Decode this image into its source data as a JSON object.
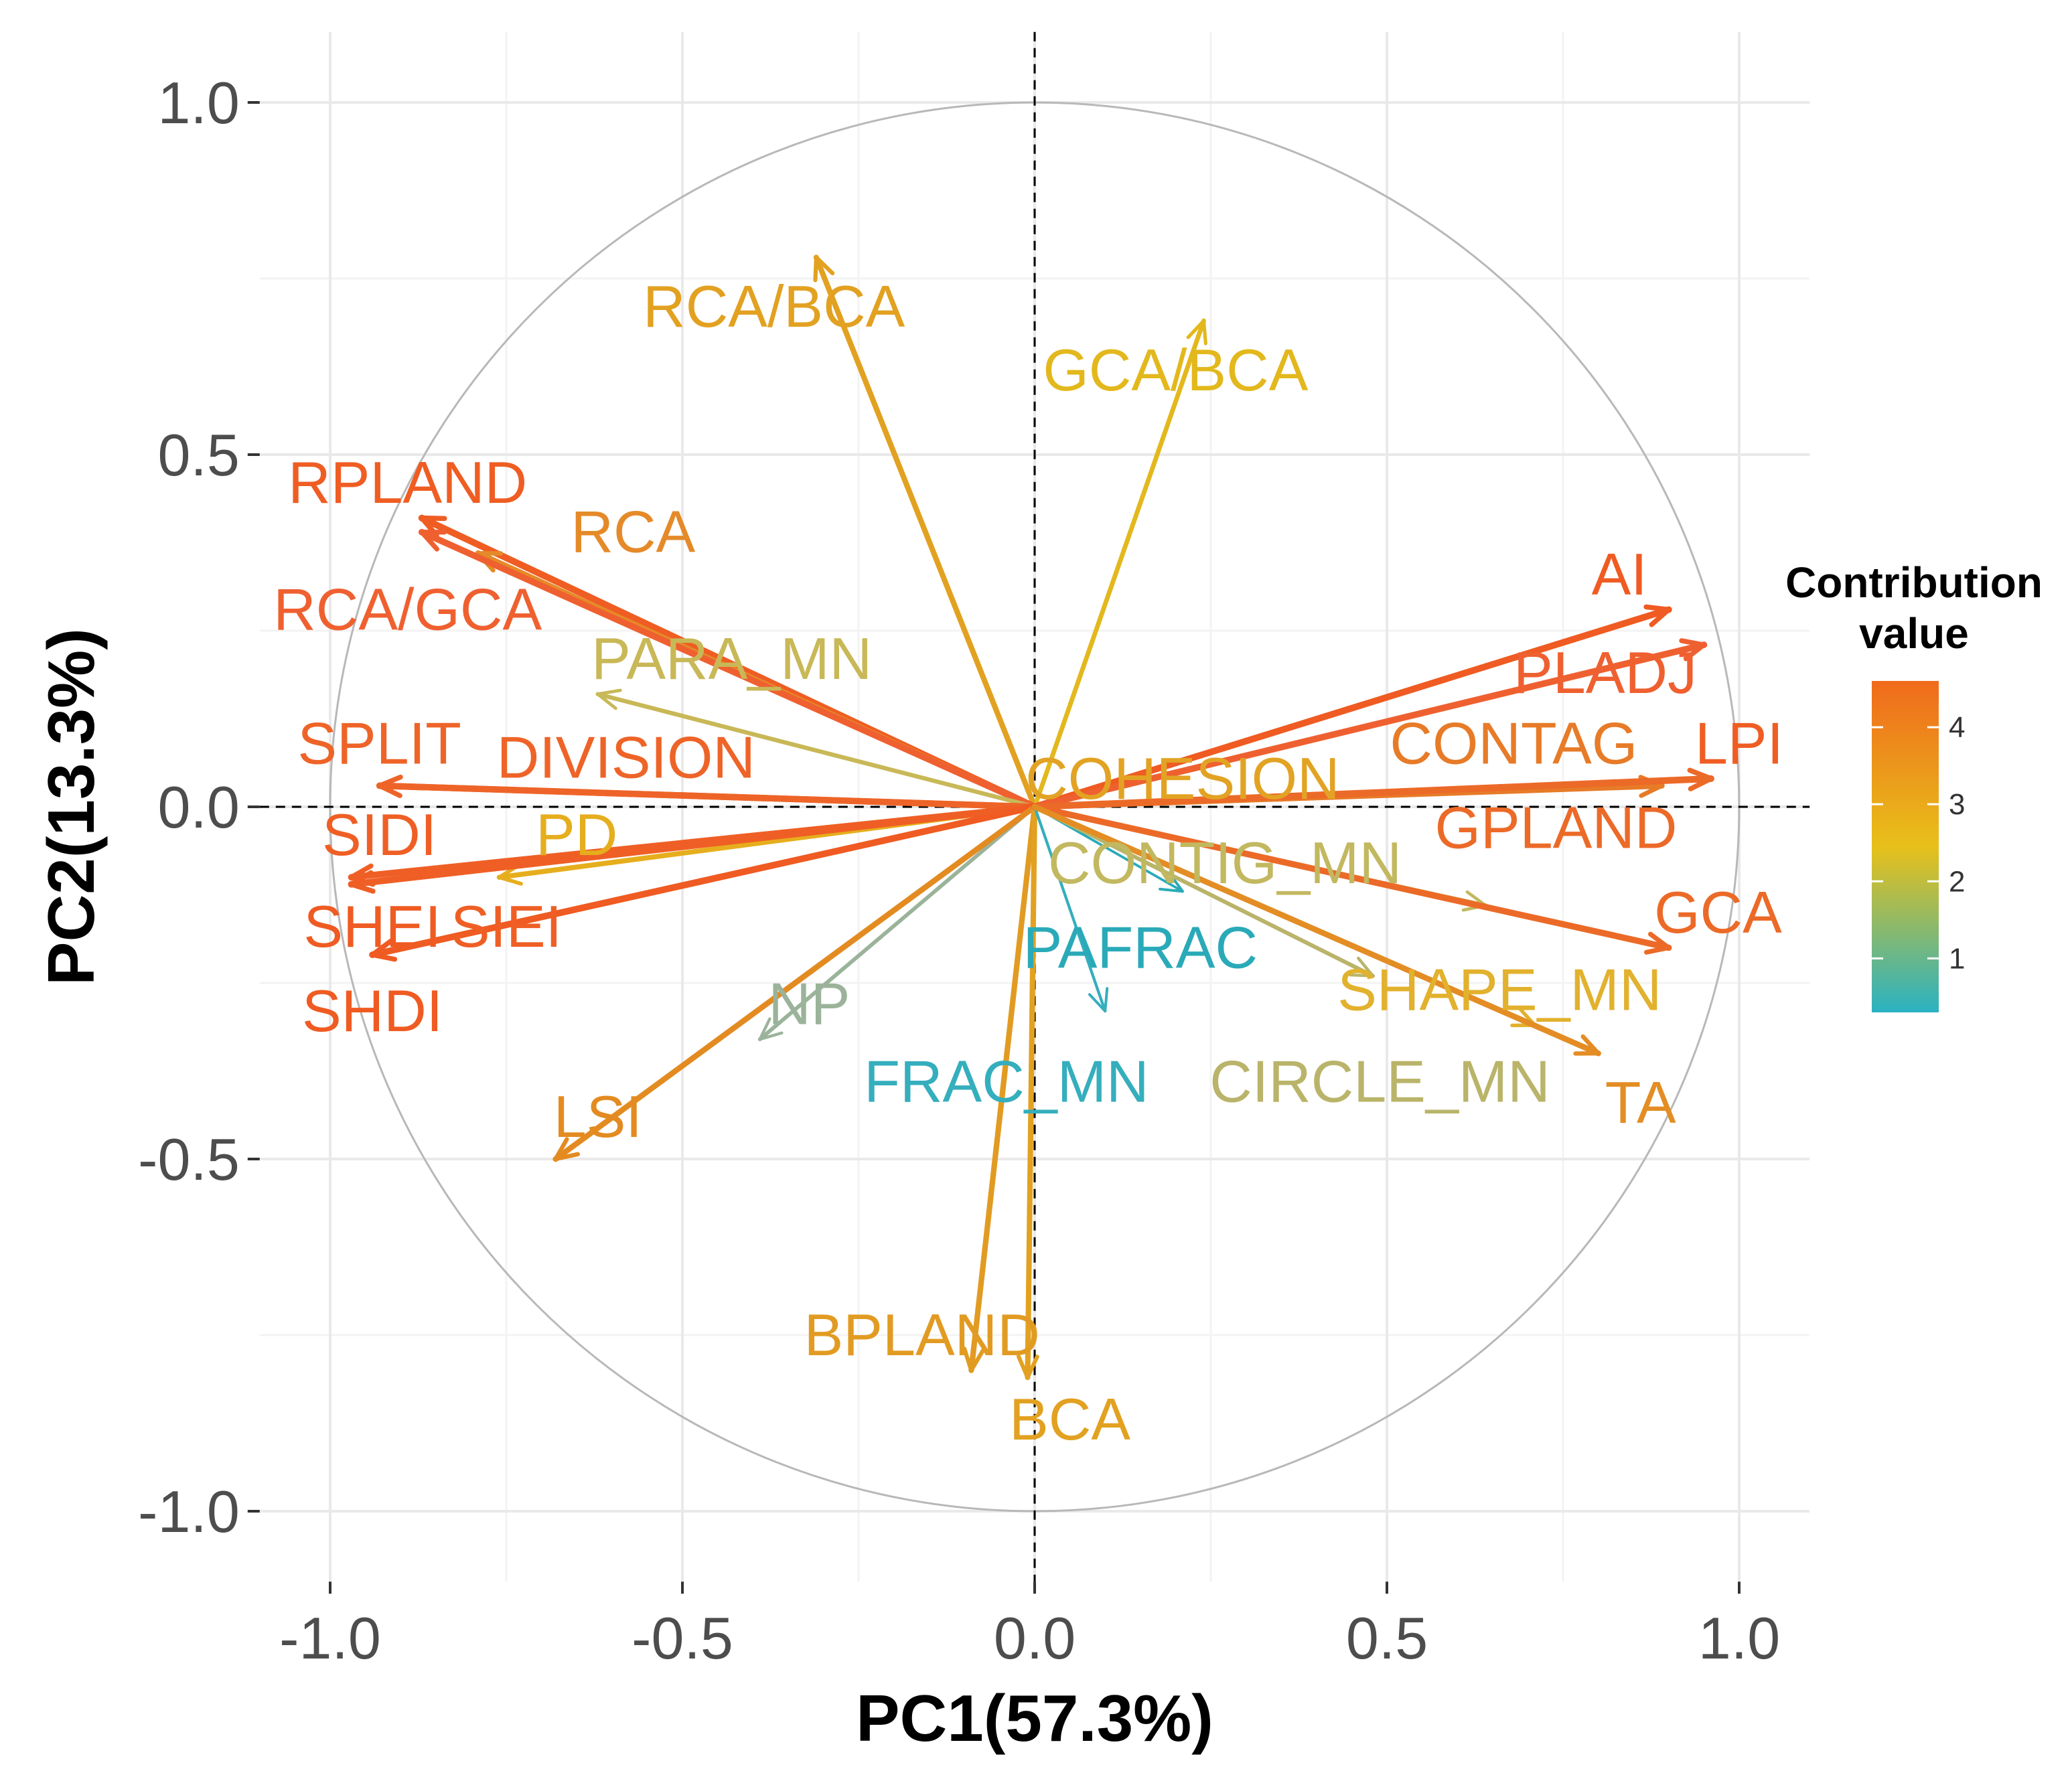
{
  "chart_data": {
    "type": "scatter",
    "subtype": "pca-variable-correlation-circle",
    "title": "",
    "xlabel": "PC1(57.3%)",
    "ylabel": "PC2(13.3%)",
    "xlim": [
      -1.1,
      1.1
    ],
    "ylim": [
      -1.1,
      1.1
    ],
    "x_ticks": [
      "-1.0",
      "-0.5",
      "0.0",
      "0.5",
      "1.0"
    ],
    "y_ticks": [
      "-1.0",
      "-0.5",
      "0.0",
      "0.5",
      "1.0"
    ],
    "grid": true,
    "unit_circle": true,
    "reference_lines": "dashed lines at x=0 and y=0",
    "legend": {
      "title": "Contribution value",
      "placement": "right",
      "ticks": [
        "1",
        "2",
        "3",
        "4"
      ],
      "colors": [
        "#2ab2c2",
        "#e8c01a",
        "#f06a1c"
      ]
    },
    "variables": [
      {
        "name": "RCA/BCA",
        "x": -0.31,
        "y": 0.78,
        "contribution": 3.3,
        "color": "#e2a121",
        "label_x": -0.37,
        "label_y": 0.71
      },
      {
        "name": "GCA/BCA",
        "x": 0.24,
        "y": 0.69,
        "contribution": 2.5,
        "color": "#e3b81d",
        "label_x": 0.2,
        "label_y": 0.62
      },
      {
        "name": "RPLAND",
        "x": -0.87,
        "y": 0.41,
        "contribution": 4.5,
        "color": "#ef5d23",
        "label_x": -0.89,
        "label_y": 0.46
      },
      {
        "name": "RCA",
        "x": -0.79,
        "y": 0.36,
        "contribution": 3.7,
        "color": "#e58a29",
        "label_x": -0.57,
        "label_y": 0.39
      },
      {
        "name": "RCA/GCA",
        "x": -0.87,
        "y": 0.39,
        "contribution": 4.3,
        "color": "#ef6030",
        "label_x": -0.89,
        "label_y": 0.28
      },
      {
        "name": "PARA_MN",
        "x": -0.62,
        "y": 0.16,
        "contribution": 2.2,
        "color": "#c8b857",
        "label_x": -0.43,
        "label_y": 0.21
      },
      {
        "name": "SPLIT",
        "x": -0.93,
        "y": 0.03,
        "contribution": 4.2,
        "color": "#ee6428",
        "label_x": -0.93,
        "label_y": 0.09
      },
      {
        "name": "DIVISION",
        "x": -0.93,
        "y": 0.03,
        "contribution": 4.2,
        "color": "#ee6428",
        "label_x": -0.58,
        "label_y": 0.07
      },
      {
        "name": "SIDI",
        "x": -0.97,
        "y": -0.1,
        "contribution": 4.3,
        "color": "#ef5f25",
        "label_x": -0.93,
        "label_y": -0.04
      },
      {
        "name": "PD",
        "x": -0.76,
        "y": -0.1,
        "contribution": 2.9,
        "color": "#e6ae1d",
        "label_x": -0.65,
        "label_y": -0.04
      },
      {
        "name": "SHEI",
        "x": -0.97,
        "y": -0.11,
        "contribution": 4.4,
        "color": "#ef5b22",
        "label_x": -0.94,
        "label_y": -0.17
      },
      {
        "name": "SIEI",
        "x": -0.97,
        "y": -0.11,
        "contribution": 4.3,
        "color": "#ef5f25",
        "label_x": -0.75,
        "label_y": -0.17
      },
      {
        "name": "SHDI",
        "x": -0.94,
        "y": -0.21,
        "contribution": 4.4,
        "color": "#ef5b22",
        "label_x": -0.94,
        "label_y": -0.29
      },
      {
        "name": "NP",
        "x": -0.39,
        "y": -0.33,
        "contribution": 1.8,
        "color": "#9ab39a",
        "label_x": -0.32,
        "label_y": -0.28
      },
      {
        "name": "LSI",
        "x": -0.68,
        "y": -0.5,
        "contribution": 3.5,
        "color": "#e38b21",
        "label_x": -0.62,
        "label_y": -0.44
      },
      {
        "name": "BPLAND",
        "x": -0.09,
        "y": -0.8,
        "contribution": 3.4,
        "color": "#e29b22",
        "label_x": -0.16,
        "label_y": -0.75
      },
      {
        "name": "BCA",
        "x": -0.01,
        "y": -0.81,
        "contribution": 3.3,
        "color": "#e2a121",
        "label_x": 0.05,
        "label_y": -0.87
      },
      {
        "name": "FRAC_MN",
        "x": 0.1,
        "y": -0.29,
        "contribution": 0.8,
        "color": "#35aebd",
        "label_x": -0.04,
        "label_y": -0.39
      },
      {
        "name": "PAFRAC",
        "x": 0.21,
        "y": -0.12,
        "contribution": 0.5,
        "color": "#2aaab8",
        "label_x": 0.15,
        "label_y": -0.2
      },
      {
        "name": "CONTIG_MN",
        "x": 0.64,
        "y": -0.14,
        "contribution": 2.1,
        "color": "#c2b860",
        "label_x": 0.27,
        "label_y": -0.08
      },
      {
        "name": "COHESION",
        "x": 0.89,
        "y": 0.03,
        "contribution": 3.0,
        "color": "#e2a324",
        "label_x": 0.21,
        "label_y": 0.04
      },
      {
        "name": "CONTAG",
        "x": 0.89,
        "y": 0.03,
        "contribution": 3.8,
        "color": "#e77b28",
        "label_x": 0.68,
        "label_y": 0.09
      },
      {
        "name": "AI",
        "x": 0.9,
        "y": 0.28,
        "contribution": 4.4,
        "color": "#ef5b22",
        "label_x": 0.83,
        "label_y": 0.33
      },
      {
        "name": "PLADJ",
        "x": 0.95,
        "y": 0.23,
        "contribution": 4.3,
        "color": "#ef6030",
        "label_x": 0.81,
        "label_y": 0.19
      },
      {
        "name": "LPI",
        "x": 0.96,
        "y": 0.04,
        "contribution": 4.5,
        "color": "#ef5d23",
        "label_x": 1.0,
        "label_y": 0.09
      },
      {
        "name": "GPLAND",
        "x": 0.96,
        "y": 0.04,
        "contribution": 4.1,
        "color": "#ec6a28",
        "label_x": 0.74,
        "label_y": -0.03
      },
      {
        "name": "GCA",
        "x": 0.9,
        "y": -0.2,
        "contribution": 4.1,
        "color": "#ec6a28",
        "label_x": 0.97,
        "label_y": -0.15
      },
      {
        "name": "SHAPE_MN",
        "x": 0.71,
        "y": -0.31,
        "contribution": 2.7,
        "color": "#e2b12d",
        "label_x": 0.66,
        "label_y": -0.26
      },
      {
        "name": "CIRCLE_MN",
        "x": 0.48,
        "y": -0.24,
        "contribution": 2.0,
        "color": "#b9b46a",
        "label_x": 0.49,
        "label_y": -0.39
      },
      {
        "name": "TA",
        "x": 0.8,
        "y": -0.35,
        "contribution": 3.6,
        "color": "#e38d24",
        "label_x": 0.86,
        "label_y": -0.42
      }
    ]
  }
}
